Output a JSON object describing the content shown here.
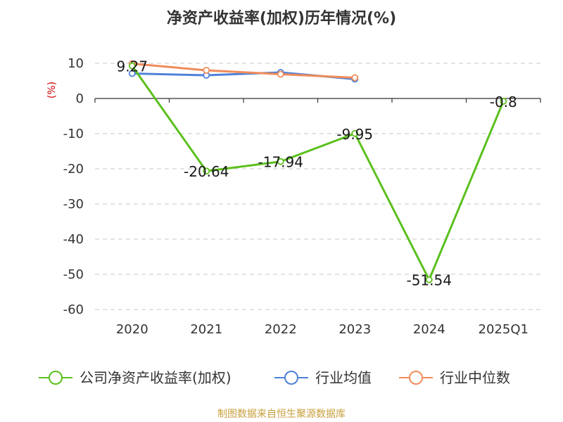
{
  "title": "净资产收益率(加权)历年情况(%)",
  "source": "制图数据来自恒生聚源数据库",
  "chart_data": {
    "type": "line",
    "categories": [
      "2020",
      "2021",
      "2022",
      "2023",
      "2024",
      "2025Q1"
    ],
    "ylabel": "(%)",
    "ylim": [
      -60,
      10
    ],
    "yticks": [
      10,
      0,
      -10,
      -20,
      -30,
      -40,
      -50,
      -60
    ],
    "grid": true,
    "legend_position": "bottom",
    "series": [
      {
        "name": "公司净资产收益率(加权)",
        "color": "#5cc01e",
        "values": [
          9.27,
          -20.64,
          -17.94,
          -9.95,
          -51.54,
          -0.8
        ],
        "labels": [
          "9.27",
          "-20.64",
          "-17.94",
          "-9.95",
          "-51.54",
          "-0.8"
        ]
      },
      {
        "name": "行业均值",
        "color": "#4f81d9",
        "values": [
          7.1,
          6.6,
          7.4,
          5.5,
          null,
          null
        ]
      },
      {
        "name": "行业中位数",
        "color": "#f08c5a",
        "values": [
          9.9,
          8.0,
          6.9,
          5.9,
          null,
          null
        ]
      }
    ]
  }
}
